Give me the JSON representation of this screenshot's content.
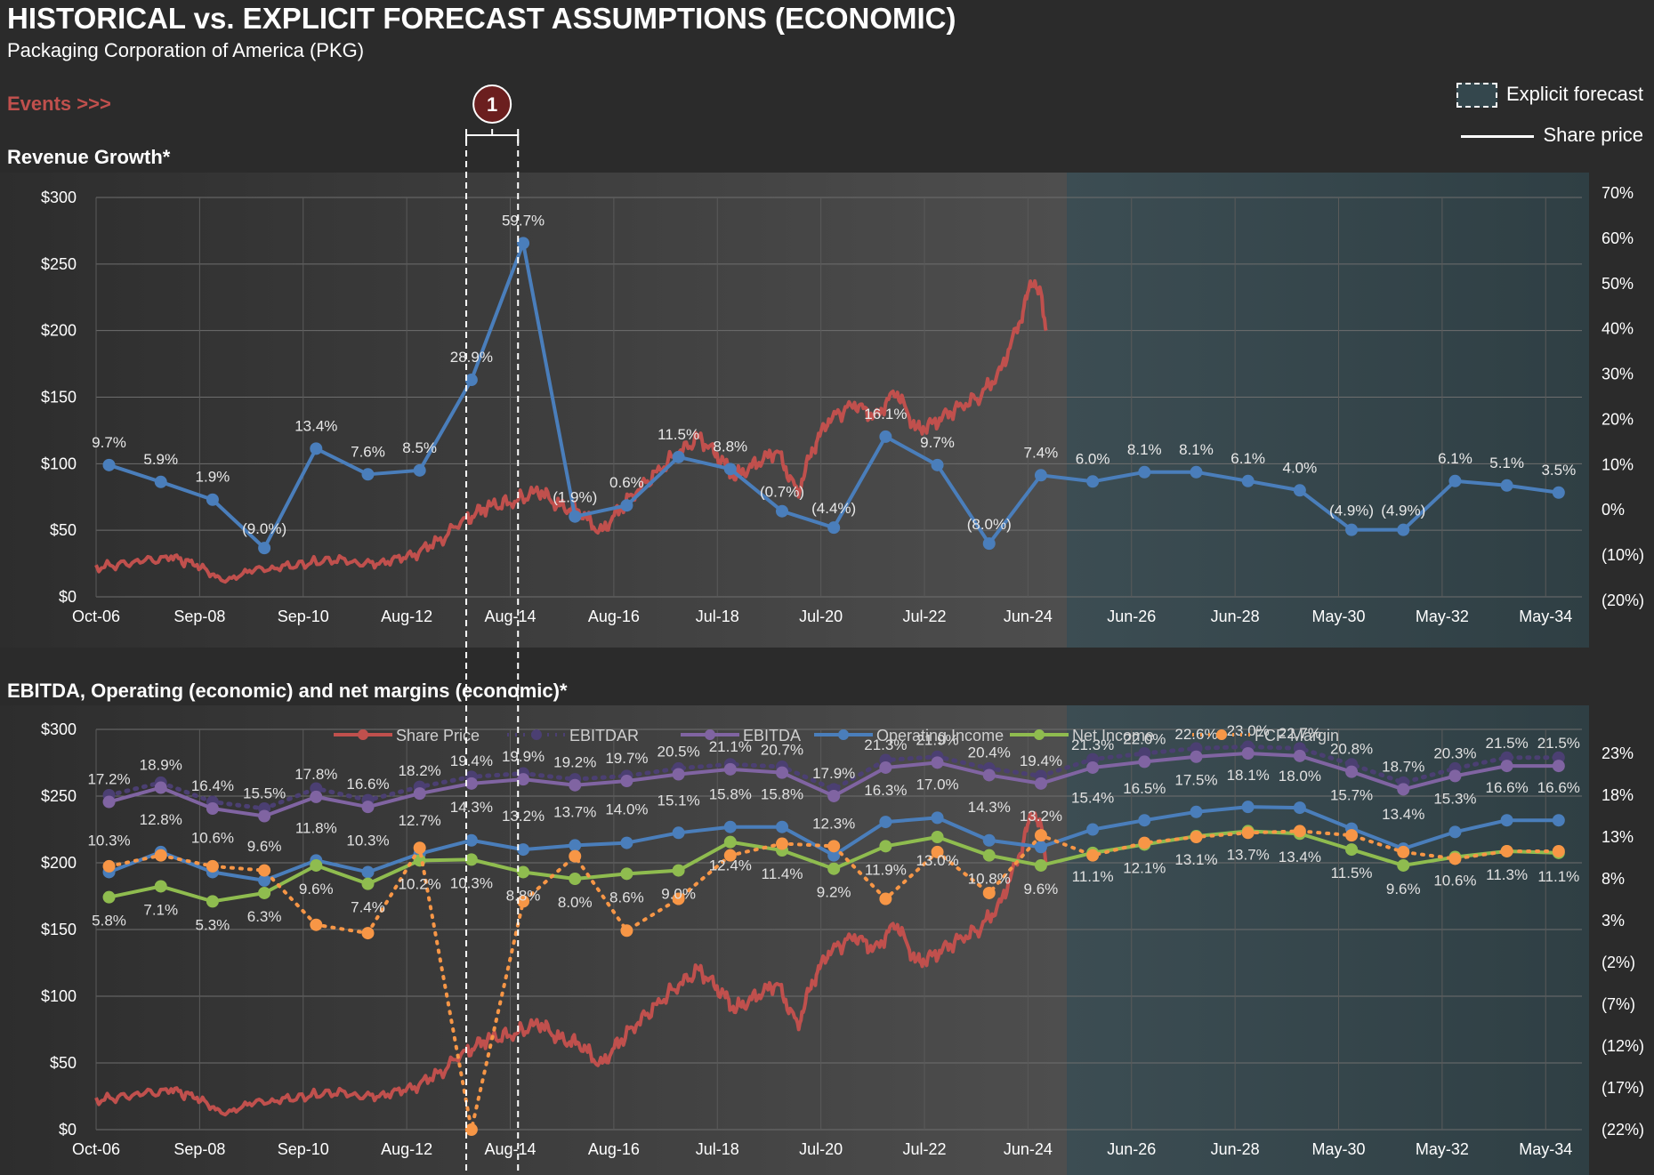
{
  "header": {
    "title": "HISTORICAL vs. EXPLICIT FORECAST ASSUMPTIONS (ECONOMIC)",
    "subtitle": "Packaging Corporation of America (PKG)",
    "events_label": "Events >>>",
    "event_marker": "1",
    "legend_forecast": "Explicit forecast",
    "legend_share_price": "Share price"
  },
  "colors": {
    "background": "#2b2b2b",
    "share_price": "#c0504d",
    "revenue": "#4a7ebb",
    "ebitdar": "#4b3f72",
    "ebitda": "#8064a2",
    "operating": "#4a7ebb",
    "net_income": "#8fbc4f",
    "fcf": "#f79646",
    "forecast_region": "#34474d"
  },
  "chart_data": [
    {
      "type": "line",
      "title": "Revenue Growth*",
      "x_ticks": [
        "Oct-06",
        "Sep-08",
        "Sep-10",
        "Aug-12",
        "Aug-14",
        "Aug-16",
        "Jul-18",
        "Jul-20",
        "Jul-22",
        "Jun-24",
        "Jun-26",
        "Jun-28",
        "May-30",
        "May-32",
        "May-34"
      ],
      "y_left_ticks": [
        "$0",
        "$50",
        "$100",
        "$150",
        "$200",
        "$250",
        "$300"
      ],
      "y_left_range": [
        0,
        300
      ],
      "y_right_ticks": [
        "(20%)",
        "(10%)",
        "0%",
        "10%",
        "20%",
        "30%",
        "40%",
        "50%",
        "60%",
        "70%"
      ],
      "y_right_range": [
        -20,
        70
      ],
      "forecast_start": 2025.5,
      "series": [
        {
          "name": "Revenue Growth",
          "x": [
            2007,
            2008,
            2009,
            2010,
            2011,
            2012,
            2013,
            2014,
            2015,
            2016,
            2017,
            2018,
            2019,
            2020,
            2021,
            2022,
            2023,
            2024,
            2025,
            2026,
            2027,
            2028,
            2029,
            2030,
            2031,
            2032,
            2033,
            2034,
            2035
          ],
          "values": [
            9.7,
            5.9,
            1.9,
            -9.0,
            13.4,
            7.6,
            8.5,
            28.9,
            59.7,
            -1.9,
            0.6,
            11.5,
            8.8,
            -0.7,
            -4.4,
            16.1,
            9.7,
            -8.0,
            7.4,
            6.0,
            8.1,
            8.1,
            6.1,
            4.0,
            -4.9,
            -4.9,
            6.1,
            5.1,
            3.5
          ],
          "labels": [
            "9.7%",
            "5.9%",
            "1.9%",
            "(9.0%)",
            "13.4%",
            "7.6%",
            "8.5%",
            "28.9%",
            "59.7%",
            "(1.9%)",
            "0.6%",
            "11.5%",
            "8.8%",
            "(0.7%)",
            "(4.4%)",
            "16.1%",
            "9.7%",
            "(8.0%)",
            "7.4%",
            "6.0%",
            "8.1%",
            "8.1%",
            "6.1%",
            "4.0%",
            "(4.9%)",
            "(4.9%)",
            "6.1%",
            "5.1%",
            "3.5%"
          ]
        }
      ]
    },
    {
      "type": "line",
      "title": "EBITDA, Operating (economic) and net margins (economic)*",
      "x_ticks": [
        "Oct-06",
        "Sep-08",
        "Sep-10",
        "Aug-12",
        "Aug-14",
        "Aug-16",
        "Jul-18",
        "Jul-20",
        "Jul-22",
        "Jun-24",
        "Jun-26",
        "Jun-28",
        "May-30",
        "May-32",
        "May-34"
      ],
      "y_left_ticks": [
        "$0",
        "$50",
        "$100",
        "$150",
        "$200",
        "$250",
        "$300"
      ],
      "y_left_range": [
        0,
        300
      ],
      "y_right_ticks": [
        "(22%)",
        "(17%)",
        "(12%)",
        "(7%)",
        "(2%)",
        "3%",
        "8%",
        "13%",
        "18%",
        "23%"
      ],
      "y_right_range": [
        -22,
        23
      ],
      "legend": [
        "Share Price",
        "EBITDAR",
        "EBITDA",
        "Operating Income",
        "Net Income",
        "FCF Margin"
      ],
      "series": [
        {
          "name": "EBITDAR",
          "x": [
            2007,
            2008,
            2009,
            2010,
            2011,
            2012,
            2013,
            2014,
            2015,
            2016,
            2017,
            2018,
            2019,
            2020,
            2021,
            2022,
            2023,
            2024,
            2025,
            2026,
            2027,
            2028,
            2029,
            2030,
            2031,
            2032,
            2033,
            2034,
            2035
          ],
          "values": [
            18.0,
            19.5,
            17.2,
            16.4,
            18.8,
            17.4,
            19.0,
            20.2,
            20.6,
            19.9,
            20.3,
            21.2,
            21.7,
            21.4,
            18.7,
            22.2,
            22.6,
            21.2,
            20.3,
            22.3,
            23.0,
            23.6,
            23.8,
            23.6,
            21.7,
            19.5,
            21.2,
            22.5,
            22.5
          ]
        },
        {
          "name": "EBITDA",
          "x": [
            2007,
            2008,
            2009,
            2010,
            2011,
            2012,
            2013,
            2014,
            2015,
            2016,
            2017,
            2018,
            2019,
            2020,
            2021,
            2022,
            2023,
            2024,
            2025,
            2026,
            2027,
            2028,
            2029,
            2030,
            2031,
            2032,
            2033,
            2034,
            2035
          ],
          "values": [
            17.2,
            18.9,
            16.4,
            15.5,
            17.8,
            16.6,
            18.2,
            19.4,
            19.9,
            19.2,
            19.7,
            20.5,
            21.1,
            20.7,
            17.9,
            21.3,
            21.9,
            20.4,
            19.4,
            21.3,
            22.0,
            22.6,
            23.0,
            22.7,
            20.8,
            18.7,
            20.3,
            21.5,
            21.5
          ],
          "labels": [
            "17.2%",
            "18.9%",
            "16.4%",
            "15.5%",
            "17.8%",
            "16.6%",
            "18.2%",
            "19.4%",
            "19.9%",
            "19.2%",
            "19.7%",
            "20.5%",
            "21.1%",
            "20.7%",
            "17.9%",
            "21.3%",
            "21.9%",
            "20.4%",
            "19.4%",
            "21.3%",
            "22.0%",
            "22.6%",
            "23.0%",
            "22.7%",
            "20.8%",
            "18.7%",
            "20.3%",
            "21.5%",
            "21.5%"
          ]
        },
        {
          "name": "Operating Income",
          "x": [
            2007,
            2008,
            2009,
            2010,
            2011,
            2012,
            2013,
            2014,
            2015,
            2016,
            2017,
            2018,
            2019,
            2020,
            2021,
            2022,
            2023,
            2024,
            2025,
            2026,
            2027,
            2028,
            2029,
            2030,
            2031,
            2032,
            2033,
            2034,
            2035
          ],
          "values": [
            8.8,
            11.2,
            8.8,
            7.8,
            10.2,
            8.8,
            11.0,
            12.6,
            11.5,
            12.0,
            12.3,
            13.5,
            14.2,
            14.2,
            10.8,
            14.8,
            15.3,
            12.6,
            11.8,
            13.9,
            15.0,
            16.0,
            16.6,
            16.5,
            14.0,
            11.6,
            13.6,
            15.0,
            15.0
          ]
        },
        {
          "name": "Net Income",
          "x": [
            2007,
            2008,
            2009,
            2010,
            2011,
            2012,
            2013,
            2014,
            2015,
            2016,
            2017,
            2018,
            2019,
            2020,
            2021,
            2022,
            2023,
            2024,
            2025,
            2026,
            2027,
            2028,
            2029,
            2030,
            2031,
            2032,
            2033,
            2034,
            2035
          ],
          "values": [
            5.8,
            7.1,
            5.3,
            6.3,
            9.6,
            7.4,
            10.2,
            10.3,
            8.8,
            8.0,
            8.6,
            9.0,
            12.4,
            11.4,
            9.2,
            11.9,
            13.0,
            10.8,
            9.6,
            11.1,
            12.1,
            13.1,
            13.7,
            13.4,
            11.5,
            9.6,
            10.6,
            11.3,
            11.1
          ],
          "labels": [
            "5.8%",
            "7.1%",
            "5.3%",
            "6.3%",
            "9.6%",
            "7.4%",
            "10.2%",
            "10.3%",
            "8.8%",
            "8.0%",
            "8.6%",
            "9.0%",
            "12.4%",
            "11.4%",
            "9.2%",
            "11.9%",
            "13.0%",
            "10.8%",
            "9.6%",
            "11.1%",
            "12.1%",
            "13.1%",
            "13.7%",
            "13.4%",
            "11.5%",
            "9.6%",
            "10.6%",
            "11.3%",
            "11.1%"
          ]
        },
        {
          "name": "FCF Margin",
          "x": [
            2007,
            2008,
            2009,
            2010,
            2011,
            2012,
            2013,
            2014,
            2015,
            2016,
            2017,
            2018,
            2019,
            2020,
            2021,
            2022,
            2023,
            2024,
            2025,
            2026,
            2027,
            2028,
            2029,
            2030,
            2031,
            2032,
            2033,
            2034,
            2035
          ],
          "values": [
            10.3,
            12.8,
            10.6,
            9.6,
            11.8,
            10.3,
            12.7,
            14.3,
            13.2,
            13.7,
            14.0,
            15.1,
            15.8,
            15.8,
            12.3,
            16.3,
            17.0,
            14.3,
            13.2,
            15.4,
            16.5,
            17.5,
            18.1,
            18.0,
            15.7,
            13.4,
            15.3,
            16.6,
            16.6
          ],
          "labels": [
            "10.3%",
            "12.8%",
            "10.6%",
            "9.6%",
            "11.8%",
            "10.3%",
            "12.7%",
            "14.3%",
            "13.2%",
            "13.7%",
            "14.0%",
            "15.1%",
            "15.8%",
            "15.8%",
            "12.3%",
            "16.3%",
            "17.0%",
            "14.3%",
            "13.2%",
            "15.4%",
            "16.5%",
            "17.5%",
            "18.1%",
            "18.0%",
            "15.7%",
            "13.4%",
            "15.3%",
            "16.6%",
            "16.6%"
          ]
        },
        {
          "name": "FCF",
          "x": [
            2007,
            2008,
            2009,
            2010,
            2011,
            2012,
            2013,
            2014,
            2015,
            2016,
            2017,
            2018,
            2019,
            2020,
            2021,
            2022,
            2023,
            2024,
            2025,
            2026,
            2027,
            2028,
            2029,
            2030,
            2031,
            2032,
            2033,
            2034,
            2035
          ],
          "values": [
            9.5,
            10.8,
            9.5,
            9.0,
            2.5,
            1.5,
            11.7,
            -22.0,
            5.3,
            10.7,
            1.8,
            5.6,
            10.8,
            12.2,
            11.9,
            5.6,
            11.2,
            6.3,
            13.2,
            10.8,
            12.3,
            13.0,
            13.5,
            13.7,
            13.2,
            11.2,
            10.4,
            11.3,
            11.3
          ]
        }
      ]
    }
  ],
  "share_price_anchors": [
    [
      2006.75,
      22
    ],
    [
      2007.5,
      26
    ],
    [
      2008.2,
      30
    ],
    [
      2008.7,
      24
    ],
    [
      2009.2,
      12
    ],
    [
      2009.8,
      20
    ],
    [
      2010.5,
      23
    ],
    [
      2011.3,
      28
    ],
    [
      2012.0,
      25
    ],
    [
      2012.6,
      28
    ],
    [
      2013.2,
      38
    ],
    [
      2013.9,
      58
    ],
    [
      2014.3,
      68
    ],
    [
      2014.8,
      71
    ],
    [
      2015.3,
      80
    ],
    [
      2015.7,
      68
    ],
    [
      2016.1,
      64
    ],
    [
      2016.5,
      48
    ],
    [
      2016.9,
      68
    ],
    [
      2017.4,
      87
    ],
    [
      2017.9,
      105
    ],
    [
      2018.4,
      120
    ],
    [
      2018.8,
      104
    ],
    [
      2019.1,
      90
    ],
    [
      2019.5,
      100
    ],
    [
      2019.9,
      110
    ],
    [
      2020.3,
      78
    ],
    [
      2020.6,
      112
    ],
    [
      2020.9,
      133
    ],
    [
      2021.4,
      145
    ],
    [
      2021.8,
      135
    ],
    [
      2022.2,
      155
    ],
    [
      2022.6,
      125
    ],
    [
      2022.9,
      130
    ],
    [
      2023.3,
      140
    ],
    [
      2023.8,
      150
    ],
    [
      2024.2,
      168
    ],
    [
      2024.6,
      208
    ],
    [
      2024.85,
      240
    ],
    [
      2025.0,
      225
    ],
    [
      2025.1,
      200
    ]
  ]
}
